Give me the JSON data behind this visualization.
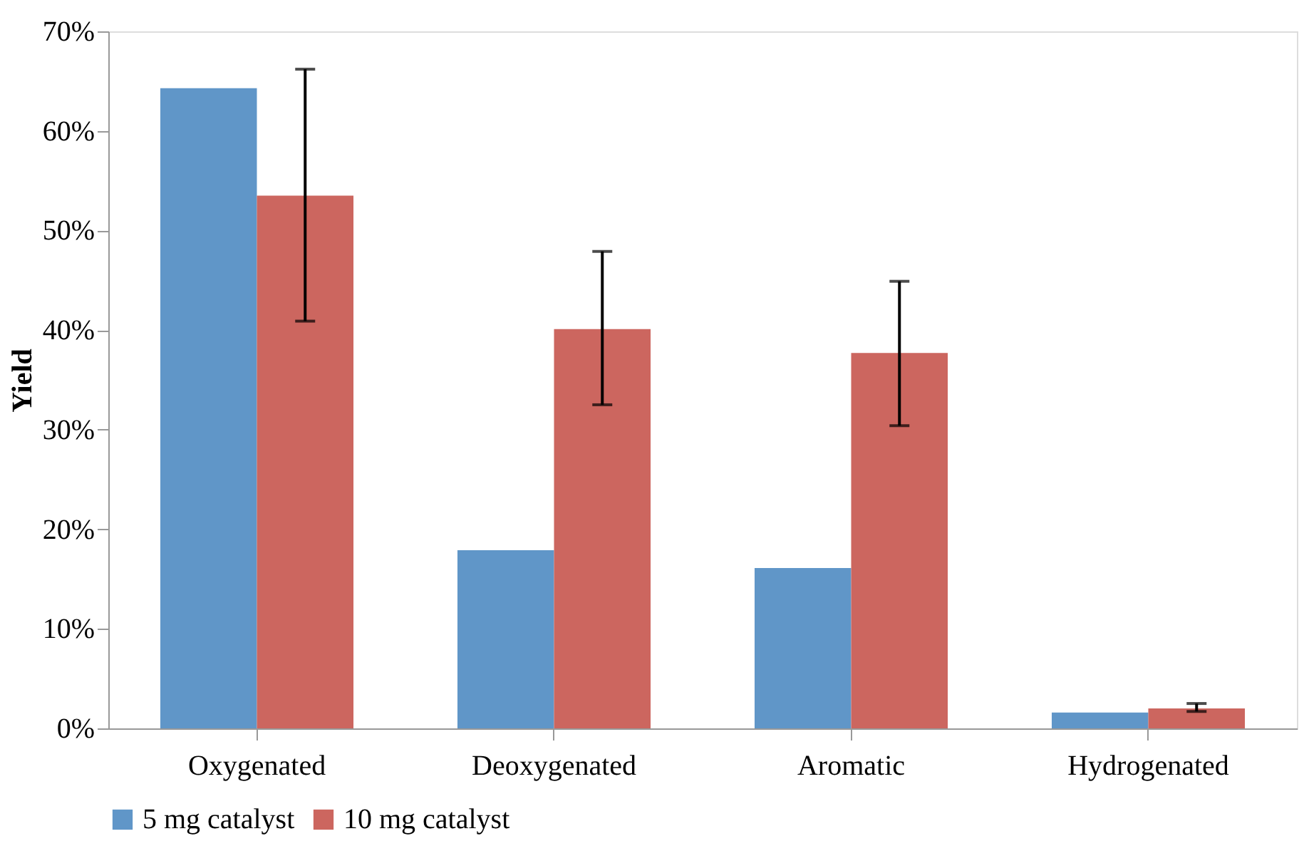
{
  "chart_data": {
    "type": "bar",
    "ylabel": "Yield",
    "categories": [
      "Oxygenated",
      "Deoxygenated",
      "Aromatic",
      "Hydrogenated"
    ],
    "series": [
      {
        "name": "5 mg catalyst",
        "color": "#6096c8",
        "values": [
          64.3,
          17.9,
          16.1,
          1.6
        ]
      },
      {
        "name": "10 mg catalyst",
        "color": "#cc665f",
        "values": [
          53.5,
          40.1,
          37.7,
          2.0
        ],
        "errors": [
          [
            40.9,
            66.2
          ],
          [
            32.5,
            47.9
          ],
          [
            30.4,
            44.9
          ],
          [
            1.7,
            2.5
          ]
        ]
      }
    ],
    "ylim": [
      0,
      70
    ],
    "yticks": [
      {
        "value": 0,
        "label": "0%"
      },
      {
        "value": 10,
        "label": "10%"
      },
      {
        "value": 20,
        "label": "20%"
      },
      {
        "value": 30,
        "label": "30%"
      },
      {
        "value": 40,
        "label": "40%"
      },
      {
        "value": 50,
        "label": "50%"
      },
      {
        "value": 60,
        "label": "60%"
      },
      {
        "value": 70,
        "label": "70%"
      }
    ],
    "grid": false,
    "legend": "bottom"
  }
}
